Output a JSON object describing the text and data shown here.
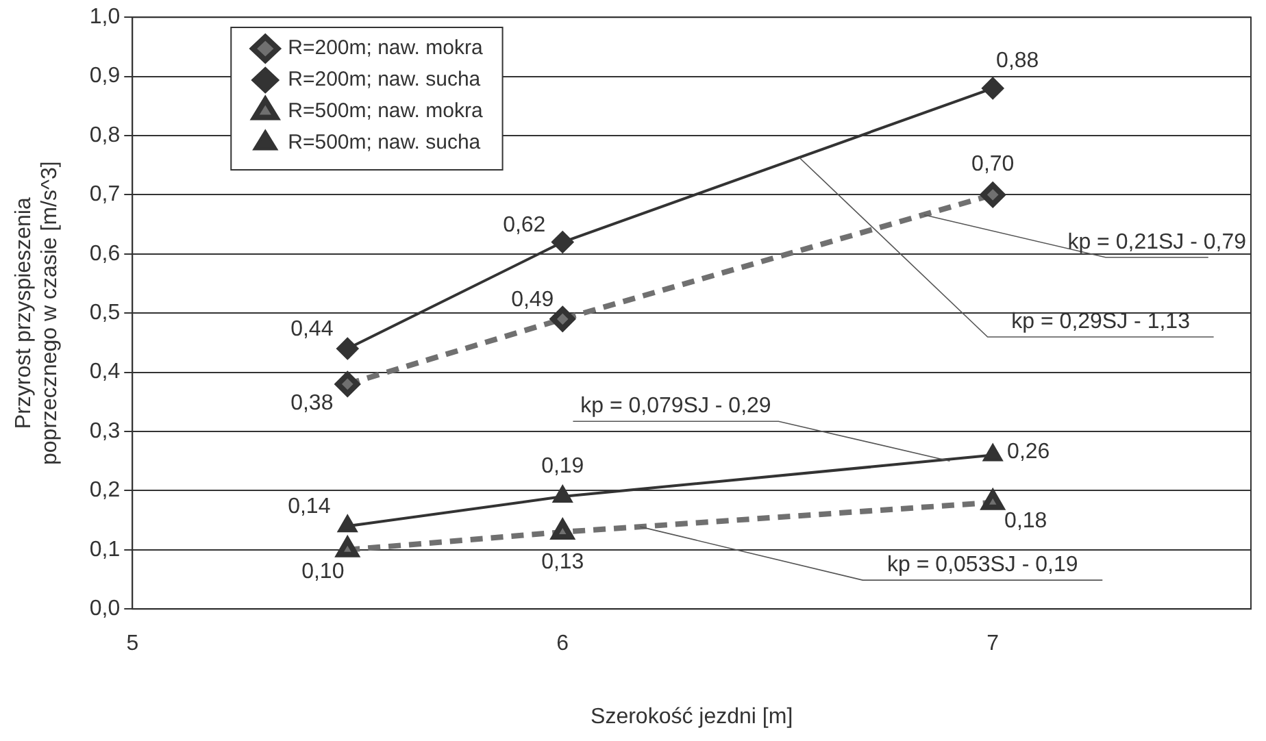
{
  "chart_data": {
    "type": "line",
    "xlabel": "Szerokość jezdni [m]",
    "ylabel": "Przyrost przyspieszenia poprzecznego w czasie [m/s^3]",
    "x": [
      5.5,
      6,
      7
    ],
    "xlim": [
      5,
      7.6
    ],
    "xticks": [
      5,
      6,
      7
    ],
    "ylim": [
      0,
      1
    ],
    "yticks": [
      {
        "value": 0,
        "label": "0,0"
      },
      {
        "value": 0.1,
        "label": "0,1"
      },
      {
        "value": 0.2,
        "label": "0,2"
      },
      {
        "value": 0.3,
        "label": "0,3"
      },
      {
        "value": 0.4,
        "label": "0,4"
      },
      {
        "value": 0.5,
        "label": "0,5"
      },
      {
        "value": 0.6,
        "label": "0,6"
      },
      {
        "value": 0.7,
        "label": "0,7"
      },
      {
        "value": 0.8,
        "label": "0,8"
      },
      {
        "value": 0.9,
        "label": "0,9"
      },
      {
        "value": 1,
        "label": "1,0"
      }
    ],
    "grid": "y",
    "legend": "top left",
    "series": [
      {
        "name": "R=200m; naw. mokra",
        "color": "#707070",
        "values": [
          0.38,
          0.49,
          0.7
        ],
        "value_labels": [
          "0,38",
          "0,49",
          "0,70"
        ],
        "marker": "diamond",
        "line_style": "dashed"
      },
      {
        "name": "R=200m; naw. sucha",
        "color": "#333333",
        "values": [
          0.44,
          0.62,
          0.88
        ],
        "value_labels": [
          "0,44",
          "0,62",
          "0,88"
        ],
        "marker": "diamond",
        "line_style": "solid"
      },
      {
        "name": "R=500m; naw. mokra",
        "color": "#707070",
        "values": [
          0.1,
          0.13,
          0.18
        ],
        "value_labels": [
          "0,10",
          "0,13",
          "0,18"
        ],
        "marker": "triangle",
        "line_style": "dashed"
      },
      {
        "name": "R=500m; naw. sucha",
        "color": "#333333",
        "values": [
          0.14,
          0.19,
          0.26
        ],
        "value_labels": [
          "0,14",
          "0,19",
          "0,26"
        ],
        "marker": "triangle",
        "line_style": "solid"
      }
    ],
    "annotations": [
      {
        "text": "kp = 0,21SJ - 0,79",
        "x": 6.84,
        "y": 0.666
      },
      {
        "text": "kp = 0,29SJ - 1,13",
        "x": 6.55,
        "y": 0.763
      },
      {
        "text": "kp = 0,079SJ - 0,29",
        "x": 6.9,
        "y": 0.25
      },
      {
        "text": "kp = 0,053SJ - 0,19",
        "x": 6.18,
        "y": 0.139
      }
    ]
  }
}
